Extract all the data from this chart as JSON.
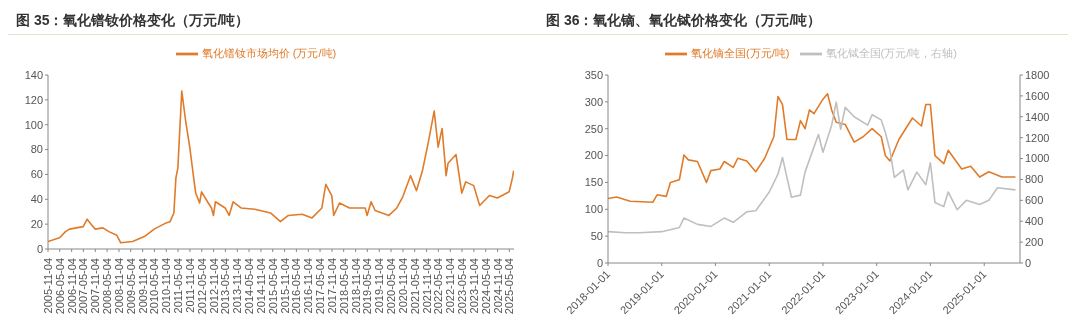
{
  "chart_data": [
    {
      "type": "line",
      "title": "图 35：氧化镨钕价格变化（万元/吨）",
      "legend": "top",
      "xlim": [
        "2005-11-04",
        "2025-07-15"
      ],
      "xticks": [
        "2005-11-04",
        "2006-05-04",
        "2006-11-04",
        "2007-05-04",
        "2007-11-04",
        "2008-05-04",
        "2008-11-04",
        "2009-05-04",
        "2009-11-04",
        "2010-05-04",
        "2010-11-04",
        "2011-05-04",
        "2011-11-04",
        "2012-05-04",
        "2012-11-04",
        "2013-05-04",
        "2013-11-04",
        "2014-05-04",
        "2014-11-04",
        "2015-05-04",
        "2015-11-04",
        "2016-05-04",
        "2016-11-04",
        "2017-05-04",
        "2017-11-04",
        "2018-05-04",
        "2018-11-04",
        "2019-05-04",
        "2019-11-04",
        "2020-05-04",
        "2020-11-04",
        "2021-05-04",
        "2021-11-04",
        "2022-05-04",
        "2022-11-04",
        "2023-05-04",
        "2023-11-04",
        "2024-05-04",
        "2024-11-04",
        "2025-05-04"
      ],
      "ylim": [
        0,
        140
      ],
      "yticks": [
        0,
        20,
        40,
        60,
        80,
        100,
        120,
        140
      ],
      "series": [
        {
          "name": "氧化镨钕市场均价 (万元/吨)",
          "color": "#e07b2a",
          "x": [
            "2005-11-04",
            "2006-05",
            "2006-08",
            "2006-10",
            "2007-05",
            "2007-07",
            "2007-09",
            "2007-11",
            "2008-03",
            "2008-06",
            "2008-10",
            "2008-12",
            "2009-06",
            "2009-12",
            "2010-05",
            "2010-11",
            "2011-01",
            "2011-03",
            "2011-04",
            "2011-05",
            "2011-07",
            "2011-09",
            "2011-11",
            "2012-01",
            "2012-02",
            "2012-04",
            "2012-05",
            "2012-08",
            "2012-10",
            "2012-11",
            "2012-12",
            "2013-05",
            "2013-07",
            "2013-09",
            "2014-01",
            "2014-08",
            "2015-04",
            "2015-09",
            "2016-01",
            "2016-08",
            "2017-01",
            "2017-06",
            "2017-08",
            "2017-11",
            "2017-12",
            "2018-03",
            "2018-08",
            "2019-04",
            "2019-05",
            "2019-07",
            "2019-09",
            "2020-04",
            "2020-08",
            "2020-11",
            "2021-03",
            "2021-06",
            "2021-09",
            "2021-12",
            "2022-03",
            "2022-05",
            "2022-07",
            "2022-09",
            "2022-10",
            "2023-02",
            "2023-05",
            "2023-07",
            "2023-11",
            "2024-02",
            "2024-07",
            "2024-11",
            "2025-05",
            "2025-06-20",
            "2025-07-10"
          ],
          "values": [
            6,
            9,
            14,
            16,
            18,
            24,
            20,
            16,
            17,
            14,
            11,
            5,
            6,
            10,
            16,
            21,
            22,
            29,
            57,
            65,
            127,
            102,
            82,
            57,
            45,
            37,
            46,
            38,
            33,
            27,
            38,
            33,
            27,
            38,
            33,
            32,
            29,
            22,
            27,
            28,
            25,
            33,
            52,
            43,
            27,
            37,
            33,
            33,
            27,
            38,
            31,
            27,
            33,
            42,
            59,
            47,
            63,
            86,
            111,
            82,
            97,
            59,
            69,
            76,
            45,
            54,
            51,
            35,
            43,
            41,
            46,
            57,
            63
          ]
        }
      ]
    },
    {
      "type": "line",
      "title": "图 36：氧化镝、氧化铽价格变化（万元/吨）",
      "legend": "top",
      "xlim": [
        "2018-01-01",
        "2025-09-01"
      ],
      "xticks": [
        "2018-01-01",
        "2019-01-01",
        "2020-01-01",
        "2021-01-01",
        "2022-01-01",
        "2023-01-01",
        "2024-01-01",
        "2025-01-01"
      ],
      "ylim": [
        0,
        350
      ],
      "yticks": [
        0,
        50,
        100,
        150,
        200,
        250,
        300,
        350
      ],
      "y2lim": [
        0,
        1800
      ],
      "y2ticks": [
        0,
        200,
        400,
        600,
        800,
        1000,
        1200,
        1400,
        1600,
        1800
      ],
      "series": [
        {
          "name": "氧化镝全国(万元/吨)",
          "color": "#e07b2a",
          "x": [
            "2018-01",
            "2018-03",
            "2018-06",
            "2018-11",
            "2018-12",
            "2019-02",
            "2019-03",
            "2019-05",
            "2019-06",
            "2019-07",
            "2019-09",
            "2019-11",
            "2019-12",
            "2020-02",
            "2020-03",
            "2020-05",
            "2020-06",
            "2020-08",
            "2020-10",
            "2020-12",
            "2021-02",
            "2021-03",
            "2021-04",
            "2021-05",
            "2021-07",
            "2021-08",
            "2021-09",
            "2021-10",
            "2021-11",
            "2022-01",
            "2022-02",
            "2022-03",
            "2022-04",
            "2022-06",
            "2022-08",
            "2022-10",
            "2022-12",
            "2023-02",
            "2023-03",
            "2023-04",
            "2023-06",
            "2023-09",
            "2023-11",
            "2023-12",
            "2024-01",
            "2024-02",
            "2024-04",
            "2024-05",
            "2024-08",
            "2024-10",
            "2024-12",
            "2025-02",
            "2025-05",
            "2025-08"
          ],
          "values": [
            120,
            123,
            115,
            113,
            127,
            124,
            150,
            155,
            201,
            192,
            189,
            150,
            172,
            175,
            189,
            178,
            195,
            190,
            170,
            195,
            235,
            310,
            295,
            230,
            230,
            265,
            250,
            285,
            278,
            305,
            315,
            285,
            262,
            258,
            225,
            235,
            250,
            235,
            200,
            190,
            230,
            270,
            255,
            295,
            295,
            200,
            185,
            210,
            175,
            180,
            160,
            170,
            160,
            160
          ]
        },
        {
          "name": "氧化铽全国(万元/吨，右轴)",
          "color": "#bfbfbf",
          "axis": "y2",
          "x": [
            "2018-01",
            "2018-05",
            "2018-08",
            "2019-01",
            "2019-05",
            "2019-06",
            "2019-09",
            "2019-12",
            "2020-03",
            "2020-05",
            "2020-08",
            "2020-10",
            "2021-01",
            "2021-03",
            "2021-04",
            "2021-05",
            "2021-06",
            "2021-08",
            "2021-09",
            "2021-12",
            "2022-01",
            "2022-03",
            "2022-04",
            "2022-05",
            "2022-06",
            "2022-08",
            "2022-11",
            "2022-12",
            "2023-02",
            "2023-03",
            "2023-04",
            "2023-05",
            "2023-07",
            "2023-08",
            "2023-10",
            "2023-12",
            "2024-01",
            "2024-02",
            "2024-04",
            "2024-05",
            "2024-07",
            "2024-09",
            "2024-12",
            "2025-02",
            "2025-04",
            "2025-08"
          ],
          "values": [
            300,
            290,
            290,
            300,
            340,
            430,
            370,
            350,
            430,
            390,
            490,
            500,
            680,
            850,
            1010,
            820,
            630,
            650,
            870,
            1230,
            1060,
            1320,
            1540,
            1280,
            1490,
            1400,
            1320,
            1420,
            1370,
            1250,
            1080,
            820,
            890,
            700,
            870,
            750,
            960,
            580,
            540,
            680,
            510,
            600,
            560,
            600,
            720,
            700
          ]
        }
      ]
    }
  ]
}
